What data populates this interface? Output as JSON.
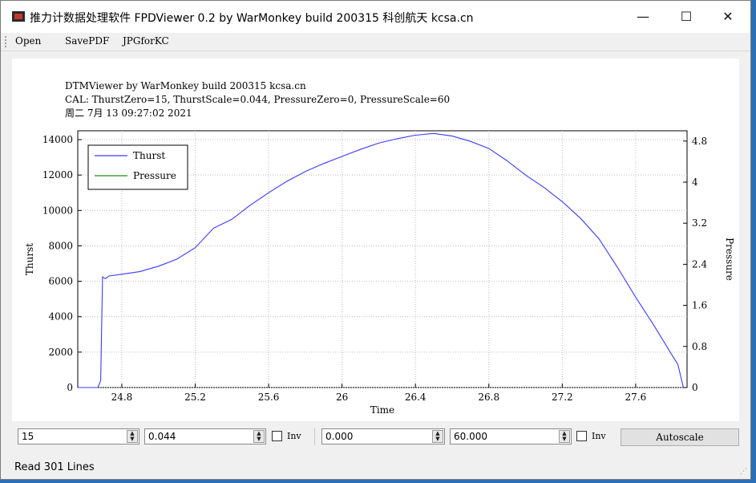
{
  "window": {
    "title": "推力计数据处理软件 FPDViewer 0.2 by WarMonkey build 200315 科创航天 kcsa.cn",
    "minimize_glyph": "—",
    "maximize_glyph": "☐",
    "close_glyph": "✕"
  },
  "menu": {
    "items": [
      "Open",
      "SavePDF",
      "JPGforKC"
    ]
  },
  "plot_header": {
    "line1": "DTMViewer by WarMonkey build 200315 kcsa.cn",
    "line2": "CAL: ThurstZero=15, ThurstScale=0.044, PressureZero=0, PressureScale=60",
    "line3": "周二 7月 13 09:27:02 2021"
  },
  "chart_data": {
    "type": "line",
    "xlabel": "Time",
    "ylabel": "Thurst",
    "y2label": "Pressure",
    "xlim": [
      24.56,
      27.88
    ],
    "ylim": [
      0,
      14500
    ],
    "y2lim": [
      0,
      5.0
    ],
    "x_ticks": [
      "24.8",
      "25.2",
      "25.6",
      "26",
      "26.4",
      "26.8",
      "27.2",
      "27.6"
    ],
    "y_ticks": [
      "0",
      "2000",
      "4000",
      "6000",
      "8000",
      "10000",
      "12000",
      "14000"
    ],
    "y2_ticks": [
      "0",
      "0.8",
      "1.6",
      "2.4",
      "3.2",
      "4",
      "4.8"
    ],
    "legend": {
      "placement": "top-left",
      "entries": [
        "Thurst",
        "Pressure"
      ]
    },
    "series": [
      {
        "name": "Thurst",
        "color": "#3b3bff",
        "points": [
          [
            24.56,
            0
          ],
          [
            24.65,
            0
          ],
          [
            24.67,
            0
          ],
          [
            24.685,
            400
          ],
          [
            24.695,
            6250
          ],
          [
            24.71,
            6150
          ],
          [
            24.73,
            6300
          ],
          [
            24.8,
            6400
          ],
          [
            24.9,
            6550
          ],
          [
            25.0,
            6850
          ],
          [
            25.1,
            7250
          ],
          [
            25.2,
            7900
          ],
          [
            25.3,
            9000
          ],
          [
            25.4,
            9500
          ],
          [
            25.5,
            10300
          ],
          [
            25.6,
            11000
          ],
          [
            25.7,
            11650
          ],
          [
            25.8,
            12200
          ],
          [
            25.9,
            12650
          ],
          [
            26.0,
            13050
          ],
          [
            26.1,
            13450
          ],
          [
            26.2,
            13800
          ],
          [
            26.3,
            14050
          ],
          [
            26.4,
            14250
          ],
          [
            26.5,
            14350
          ],
          [
            26.6,
            14200
          ],
          [
            26.7,
            13900
          ],
          [
            26.8,
            13500
          ],
          [
            26.9,
            12800
          ],
          [
            27.0,
            12000
          ],
          [
            27.1,
            11300
          ],
          [
            27.2,
            10500
          ],
          [
            27.3,
            9550
          ],
          [
            27.4,
            8400
          ],
          [
            27.5,
            6800
          ],
          [
            27.6,
            5100
          ],
          [
            27.7,
            3500
          ],
          [
            27.8,
            1800
          ],
          [
            27.83,
            1300
          ],
          [
            27.86,
            0
          ]
        ]
      },
      {
        "name": "Pressure",
        "color": "#1a8a1a",
        "points": []
      }
    ]
  },
  "controls": {
    "thrust_zero": "15",
    "thrust_scale": "0.044",
    "inv1_label": "Inv",
    "pressure_zero": "0.000",
    "pressure_scale": "60.000",
    "inv2_label": "Inv",
    "autoscale_label": "Autoscale"
  },
  "status": {
    "text": "Read 301 Lines"
  }
}
